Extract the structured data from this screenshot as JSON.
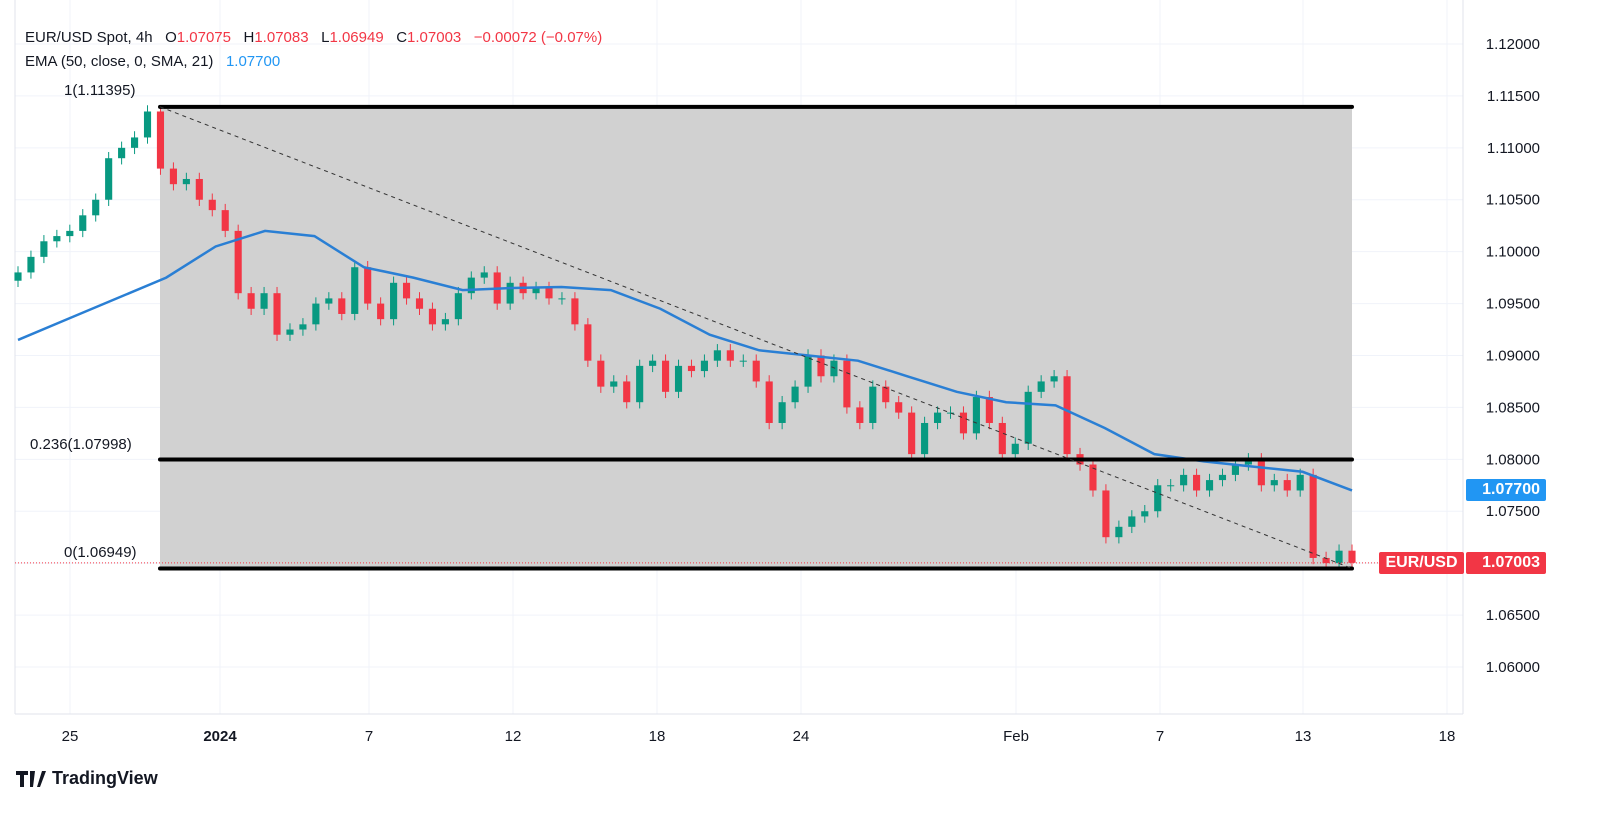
{
  "legend": {
    "symbol": "EUR/USD Spot, 4h",
    "o_label": "O",
    "o": "1.07075",
    "h_label": "H",
    "h": "1.07083",
    "l_label": "L",
    "l": "1.06949",
    "c_label": "C",
    "c": "1.07003",
    "change": "−0.00072 (−0.07%)",
    "ema_label": "EMA (50, close, 0, SMA, 21)",
    "ema_value": "1.07700"
  },
  "fib_labels": {
    "top": "1(1.11395)",
    "mid": "0.236(1.07998)",
    "bottom": "0(1.06949)"
  },
  "price_tags": {
    "ema": "1.07700",
    "symbol": "EUR/USD",
    "last": "1.07003"
  },
  "colors": {
    "up": "#089981",
    "down": "#f23645",
    "ema": "#2a7fd4",
    "fib_zone": "#d1d1d1",
    "ema_tag": "#2196f3",
    "last_tag": "#f23645"
  },
  "branding": "TradingView",
  "chart_data": {
    "type": "candlestick",
    "title": "EUR/USD Spot, 4h",
    "ylim": [
      1.0555,
      1.1225
    ],
    "y_ticks": [
      "1.12000",
      "1.11500",
      "1.11000",
      "1.10500",
      "1.10000",
      "1.09500",
      "1.09000",
      "1.08500",
      "1.08000",
      "1.07500",
      "1.06500",
      "1.06000"
    ],
    "x_ticks": [
      "25",
      "2024",
      "7",
      "12",
      "18",
      "24",
      "Feb",
      "7",
      "13",
      "18"
    ],
    "grid": true,
    "closes": [
      1.098,
      1.0995,
      1.101,
      1.1015,
      1.102,
      1.1035,
      1.105,
      1.109,
      1.11,
      1.111,
      1.1135,
      1.108,
      1.1065,
      1.107,
      1.105,
      1.104,
      1.102,
      1.096,
      1.0945,
      1.096,
      1.092,
      1.0925,
      1.093,
      1.095,
      1.0955,
      1.094,
      1.0985,
      1.095,
      1.0935,
      1.097,
      1.0955,
      1.0945,
      1.093,
      1.0935,
      1.096,
      1.0975,
      1.098,
      1.095,
      1.097,
      1.096,
      1.0965,
      1.0955,
      1.0955,
      1.093,
      1.0895,
      1.087,
      1.0875,
      1.0855,
      1.089,
      1.0895,
      1.0865,
      1.089,
      1.0885,
      1.0895,
      1.0905,
      1.0895,
      1.0895,
      1.0875,
      1.0835,
      1.0855,
      1.087,
      1.09,
      1.088,
      1.0895,
      1.085,
      1.0835,
      1.087,
      1.0855,
      1.0845,
      1.0805,
      1.0835,
      1.0845,
      1.0845,
      1.0825,
      1.086,
      1.0835,
      1.0805,
      1.0815,
      1.0865,
      1.0875,
      1.088,
      1.0805,
      1.0795,
      1.077,
      1.0725,
      1.0735,
      1.0745,
      1.075,
      1.0775,
      1.0775,
      1.0785,
      1.077,
      1.078,
      1.0785,
      1.0795,
      1.08,
      1.0775,
      1.078,
      1.077,
      1.0785,
      1.0705,
      1.07,
      1.0712,
      1.07003
    ],
    "ema": [
      1.0915,
      1.0935,
      1.0955,
      1.0975,
      1.1005,
      1.102,
      1.1015,
      1.0985,
      1.0975,
      1.0963,
      1.0965,
      1.0966,
      1.0963,
      1.0945,
      1.092,
      1.0905,
      1.09,
      1.0895,
      1.088,
      1.0865,
      1.0855,
      1.0852,
      1.083,
      1.0805,
      1.0798,
      1.0793,
      1.0788,
      1.077
    ],
    "fib_levels": [
      {
        "ratio": 1,
        "price": 1.11395
      },
      {
        "ratio": 0.236,
        "price": 1.07998
      },
      {
        "ratio": 0,
        "price": 1.06949
      }
    ]
  }
}
